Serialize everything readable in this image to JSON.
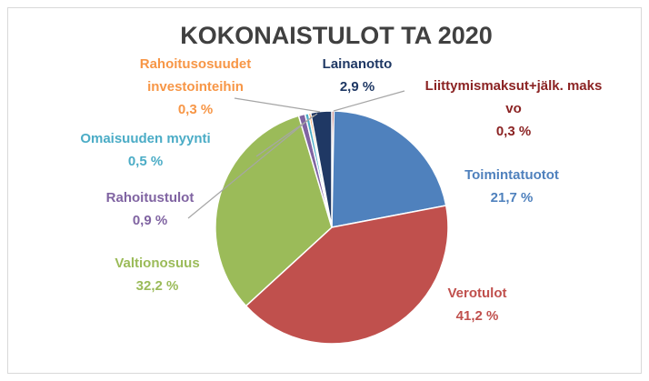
{
  "chart_data": {
    "type": "pie",
    "title": "KOKONAISTULOT TA 2020",
    "categories": [
      "Liittymismaksut+jälk. maks vo",
      "Toimintatuotot",
      "Verotulot",
      "Valtionosuus",
      "Rahoitustulot",
      "Omaisuuden myynti",
      "Rahoitusosuudet investointeihin",
      "Lainanotto"
    ],
    "values": [
      0.3,
      21.7,
      41.2,
      32.2,
      0.9,
      0.5,
      0.3,
      2.9
    ],
    "value_labels": [
      "0,3 %",
      "21,7 %",
      "41,2 %",
      "32,2 %",
      "0,9 %",
      "0,5 %",
      "0,3 %",
      "2,9 %"
    ],
    "colors": [
      "#8b2323",
      "#4f81bd",
      "#c0504d",
      "#9bbb59",
      "#8064a2",
      "#4bacc6",
      "#f79646",
      "#1f3864"
    ]
  }
}
